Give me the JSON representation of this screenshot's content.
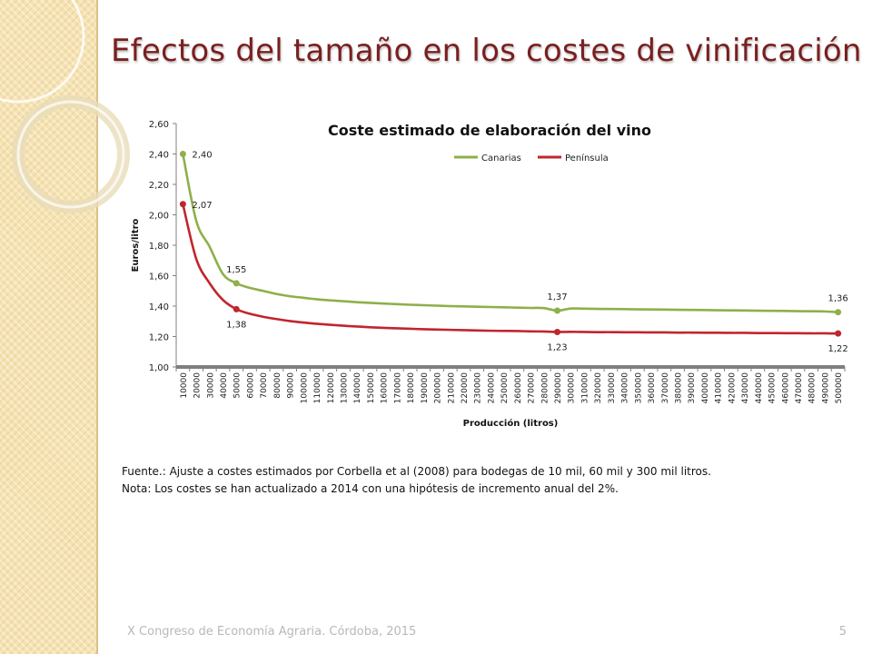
{
  "slide": {
    "title": "Efectos del tamaño en los costes de vinificación",
    "source_note": "Fuente.: Ajuste a costes estimados por Corbella et al (2008) para bodegas de 10 mil, 60 mil y 300 mil litros.",
    "update_note": "Nota: Los costes se han actualizado a 2014 con una hipótesis de incremento anual del 2%.",
    "footer": "X Congreso de Economía Agraria. Córdoba, 2015",
    "page_number": "5"
  },
  "chart_data": {
    "type": "line",
    "title": "Coste estimado de elaboración del vino",
    "xlabel": "Producción (litros)",
    "ylabel": "Euros/litro",
    "ylim": [
      1.0,
      2.6
    ],
    "yticks": [
      "1,00",
      "1,20",
      "1,40",
      "1,60",
      "1,80",
      "2,00",
      "2,20",
      "2,40",
      "2,60"
    ],
    "categories": [
      "10000",
      "20000",
      "30000",
      "40000",
      "50000",
      "60000",
      "70000",
      "80000",
      "90000",
      "100000",
      "110000",
      "120000",
      "130000",
      "140000",
      "150000",
      "160000",
      "170000",
      "180000",
      "190000",
      "200000",
      "210000",
      "220000",
      "230000",
      "240000",
      "250000",
      "260000",
      "270000",
      "280000",
      "290000",
      "300000",
      "310000",
      "320000",
      "330000",
      "340000",
      "350000",
      "360000",
      "370000",
      "380000",
      "390000",
      "400000",
      "410000",
      "420000",
      "430000",
      "440000",
      "450000",
      "460000",
      "470000",
      "480000",
      "490000",
      "500000"
    ],
    "grid": false,
    "legend_position": "top",
    "series": [
      {
        "name": "Canarias",
        "color": "#8db04a",
        "values": [
          2.4,
          1.96,
          1.79,
          1.61,
          1.55,
          1.52,
          1.5,
          1.48,
          1.465,
          1.455,
          1.445,
          1.438,
          1.432,
          1.426,
          1.421,
          1.417,
          1.413,
          1.409,
          1.406,
          1.403,
          1.4,
          1.398,
          1.396,
          1.394,
          1.392,
          1.39,
          1.388,
          1.387,
          1.37,
          1.384,
          1.383,
          1.382,
          1.381,
          1.38,
          1.379,
          1.378,
          1.377,
          1.376,
          1.375,
          1.374,
          1.373,
          1.372,
          1.371,
          1.37,
          1.369,
          1.368,
          1.367,
          1.366,
          1.365,
          1.36
        ],
        "markers": [
          {
            "category": "10000",
            "value": 2.4,
            "label": "2,40"
          },
          {
            "category": "50000",
            "value": 1.55,
            "label": "1,55"
          },
          {
            "category": "290000",
            "value": 1.37,
            "label": "1,37"
          },
          {
            "category": "500000",
            "value": 1.36,
            "label": "1,36"
          }
        ]
      },
      {
        "name": "Península",
        "color": "#c0262d",
        "values": [
          2.07,
          1.71,
          1.55,
          1.44,
          1.38,
          1.35,
          1.33,
          1.315,
          1.302,
          1.292,
          1.284,
          1.277,
          1.271,
          1.266,
          1.261,
          1.257,
          1.254,
          1.251,
          1.248,
          1.246,
          1.244,
          1.242,
          1.24,
          1.238,
          1.237,
          1.236,
          1.234,
          1.233,
          1.23,
          1.231,
          1.23,
          1.229,
          1.229,
          1.228,
          1.228,
          1.227,
          1.227,
          1.226,
          1.226,
          1.225,
          1.225,
          1.224,
          1.224,
          1.223,
          1.223,
          1.222,
          1.222,
          1.221,
          1.221,
          1.22
        ],
        "markers": [
          {
            "category": "10000",
            "value": 2.07,
            "label": "2,07"
          },
          {
            "category": "50000",
            "value": 1.38,
            "label": "1,38"
          },
          {
            "category": "290000",
            "value": 1.23,
            "label": "1,23"
          },
          {
            "category": "500000",
            "value": 1.22,
            "label": "1,22"
          }
        ]
      }
    ]
  }
}
